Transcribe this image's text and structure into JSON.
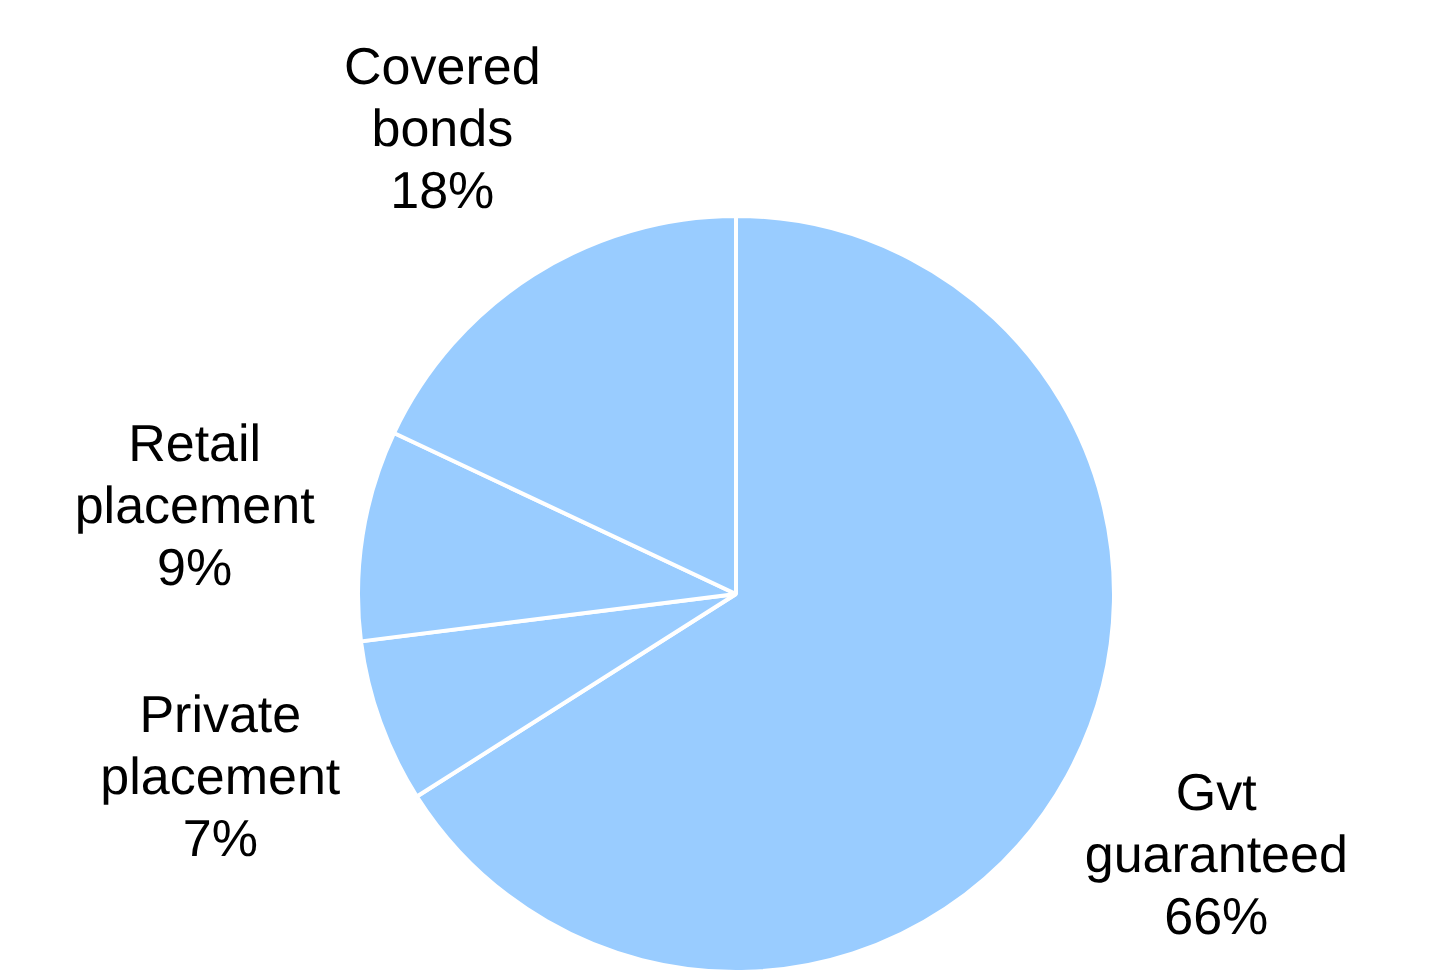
{
  "chart_data": {
    "type": "pie",
    "categories": [
      "Gvt guaranteed",
      "Private placement",
      "Retail placement",
      "Covered bonds"
    ],
    "values": [
      66,
      7,
      9,
      18
    ],
    "colors": [
      "#99ccff",
      "#99ccff",
      "#99ccff",
      "#99ccff"
    ],
    "value_labels": [
      "66%",
      "7%",
      "9%",
      "18%"
    ],
    "legend": false
  }
}
